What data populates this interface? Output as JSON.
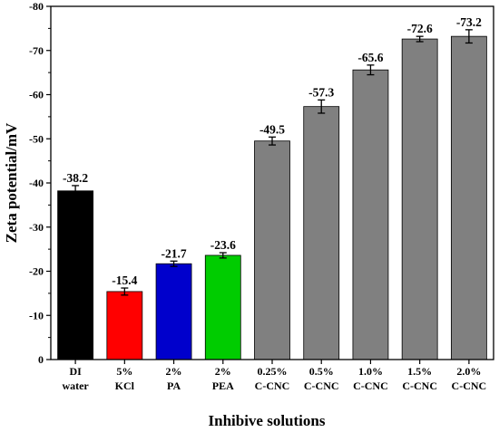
{
  "chart_data": {
    "type": "bar",
    "xlabel": "Inhibive solutions",
    "ylabel": "Zeta potential/mV",
    "ylim": [
      0,
      -80
    ],
    "yticks": [
      0,
      -10,
      -20,
      -30,
      -40,
      -50,
      -60,
      -70,
      -80
    ],
    "y_inverted": true,
    "grid": false,
    "categories": [
      [
        "DI",
        "water"
      ],
      [
        "5%",
        "KCl"
      ],
      [
        "2%",
        "PA"
      ],
      [
        "2%",
        "PEA"
      ],
      [
        "0.25%",
        "C-CNC"
      ],
      [
        "0.5%",
        "C-CNC"
      ],
      [
        "1.0%",
        "C-CNC"
      ],
      [
        "1.5%",
        "C-CNC"
      ],
      [
        "2.0%",
        "C-CNC"
      ]
    ],
    "values": [
      -38.2,
      -15.4,
      -21.7,
      -23.6,
      -49.5,
      -57.3,
      -65.6,
      -72.6,
      -73.2
    ],
    "value_labels": [
      "-38.2",
      "-15.4",
      "-21.7",
      "-23.6",
      "-49.5",
      "-57.3",
      "-65.6",
      "-72.6",
      "-73.2"
    ],
    "errors": [
      1.2,
      0.8,
      0.6,
      0.6,
      0.9,
      1.5,
      1.1,
      0.6,
      1.5
    ],
    "colors": [
      "#000000",
      "#ff0000",
      "#0000cc",
      "#00cc00",
      "#808080",
      "#808080",
      "#808080",
      "#808080",
      "#808080"
    ]
  }
}
